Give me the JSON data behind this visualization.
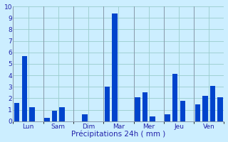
{
  "title": "",
  "xlabel": "Précipitations 24h ( mm )",
  "ylabel": "",
  "ylim": [
    0,
    10
  ],
  "yticks": [
    0,
    1,
    2,
    3,
    4,
    5,
    6,
    7,
    8,
    9,
    10
  ],
  "background_color": "#cceeff",
  "bar_color": "#0044cc",
  "grid_color": "#99cccc",
  "days": [
    "Lun",
    "Sam",
    "Dim",
    "Mar",
    "Mer",
    "Jeu",
    "Ven"
  ],
  "values": [
    [
      1.6,
      5.7,
      1.2
    ],
    [
      0.3,
      0.9,
      1.2
    ],
    [
      0.0,
      0.6,
      0.0
    ],
    [
      3.0,
      9.4,
      0.0
    ],
    [
      2.1,
      2.5,
      0.4
    ],
    [
      0.6,
      4.1,
      1.8
    ],
    [
      1.5,
      2.2,
      3.1,
      2.1
    ]
  ],
  "bars_per_day": [
    3,
    3,
    3,
    3,
    3,
    3,
    4
  ]
}
